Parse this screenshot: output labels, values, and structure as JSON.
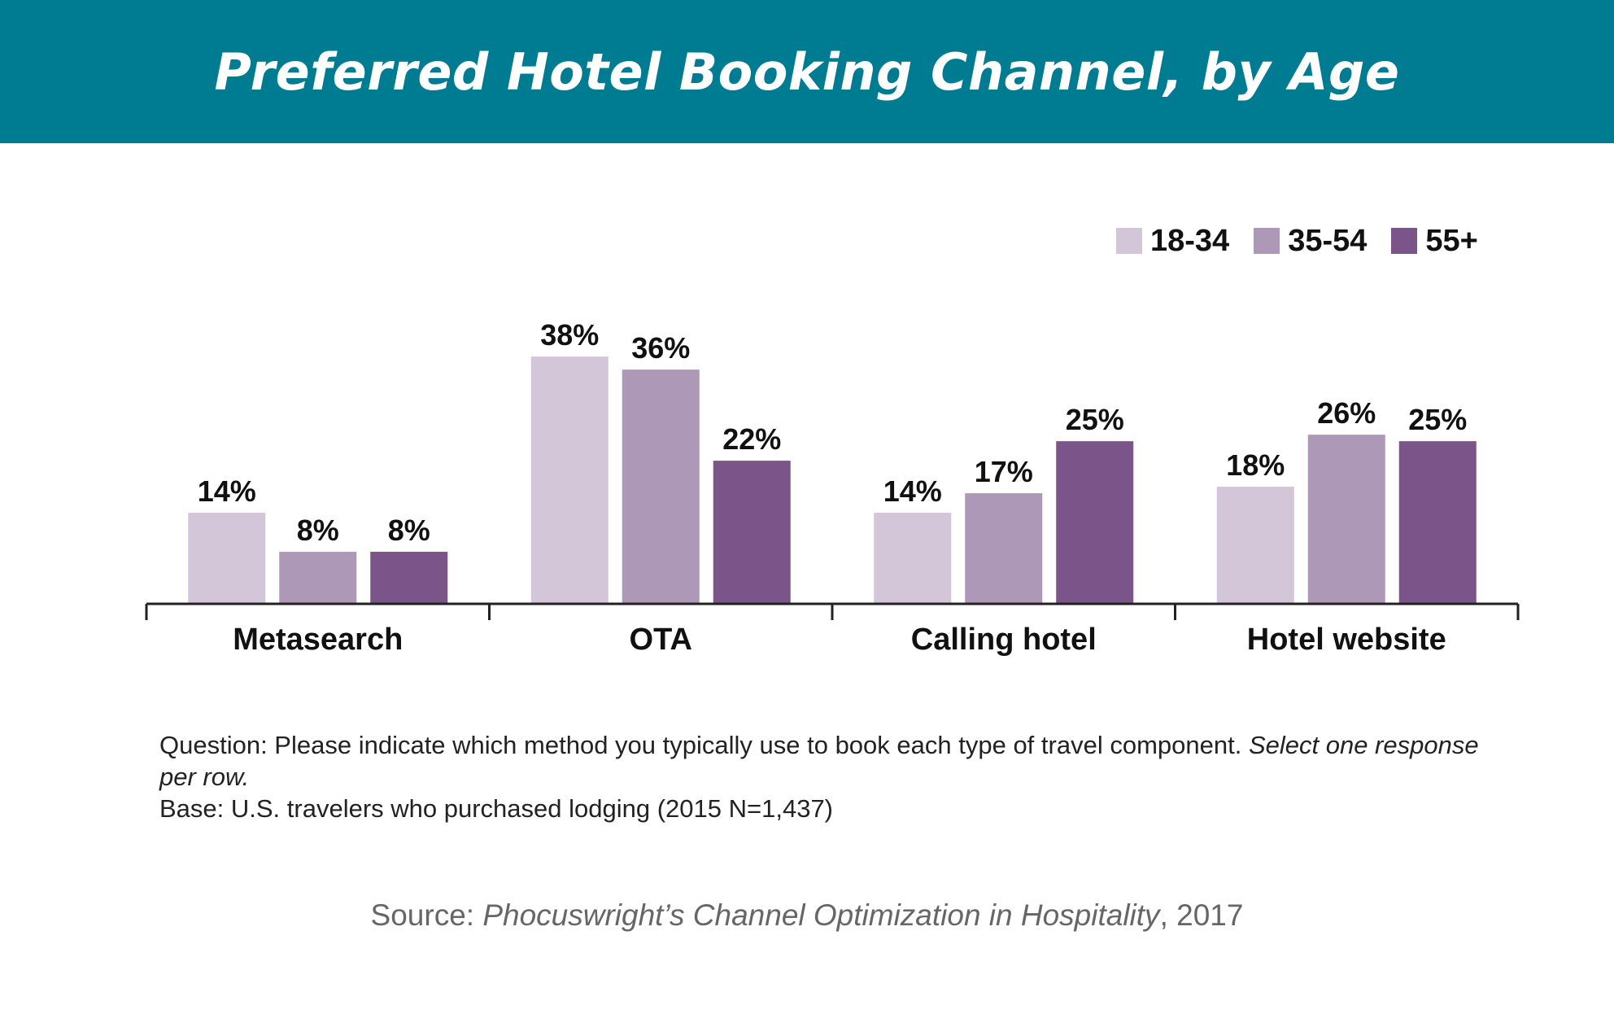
{
  "header": {
    "title": "Preferred Hotel Booking Channel, by Age"
  },
  "chart_data": {
    "type": "bar",
    "title": "Preferred Hotel Booking Channel, by Age",
    "xlabel": "",
    "ylabel": "",
    "ylim": [
      0,
      40
    ],
    "grid": false,
    "legend_position": "top-right",
    "categories": [
      "Metasearch",
      "OTA",
      "Calling hotel",
      "Hotel website"
    ],
    "series": [
      {
        "name": "18-34",
        "color": "#d3c6d8",
        "values": [
          14,
          38,
          14,
          18
        ],
        "labels": [
          "14%",
          "38%",
          "14%",
          "18%"
        ]
      },
      {
        "name": "35-54",
        "color": "#ae98b8",
        "values": [
          8,
          36,
          17,
          26
        ],
        "labels": [
          "8%",
          "36%",
          "17%",
          "26%"
        ]
      },
      {
        "name": "55+",
        "color": "#7b5489",
        "values": [
          8,
          22,
          25,
          25
        ],
        "labels": [
          "8%",
          "22%",
          "25%",
          "25%"
        ]
      }
    ]
  },
  "notes": {
    "question_prefix": "Question: Please indicate which method you typically use to book each type of travel component. ",
    "question_italic": "Select one response per row.",
    "base": "Base: U.S. travelers who purchased lodging (2015 N=1,437)"
  },
  "source": {
    "prefix": "Source: ",
    "title_italic": "Phocuswright’s Channel Optimization in Hospitality",
    "suffix": ", 2017"
  }
}
